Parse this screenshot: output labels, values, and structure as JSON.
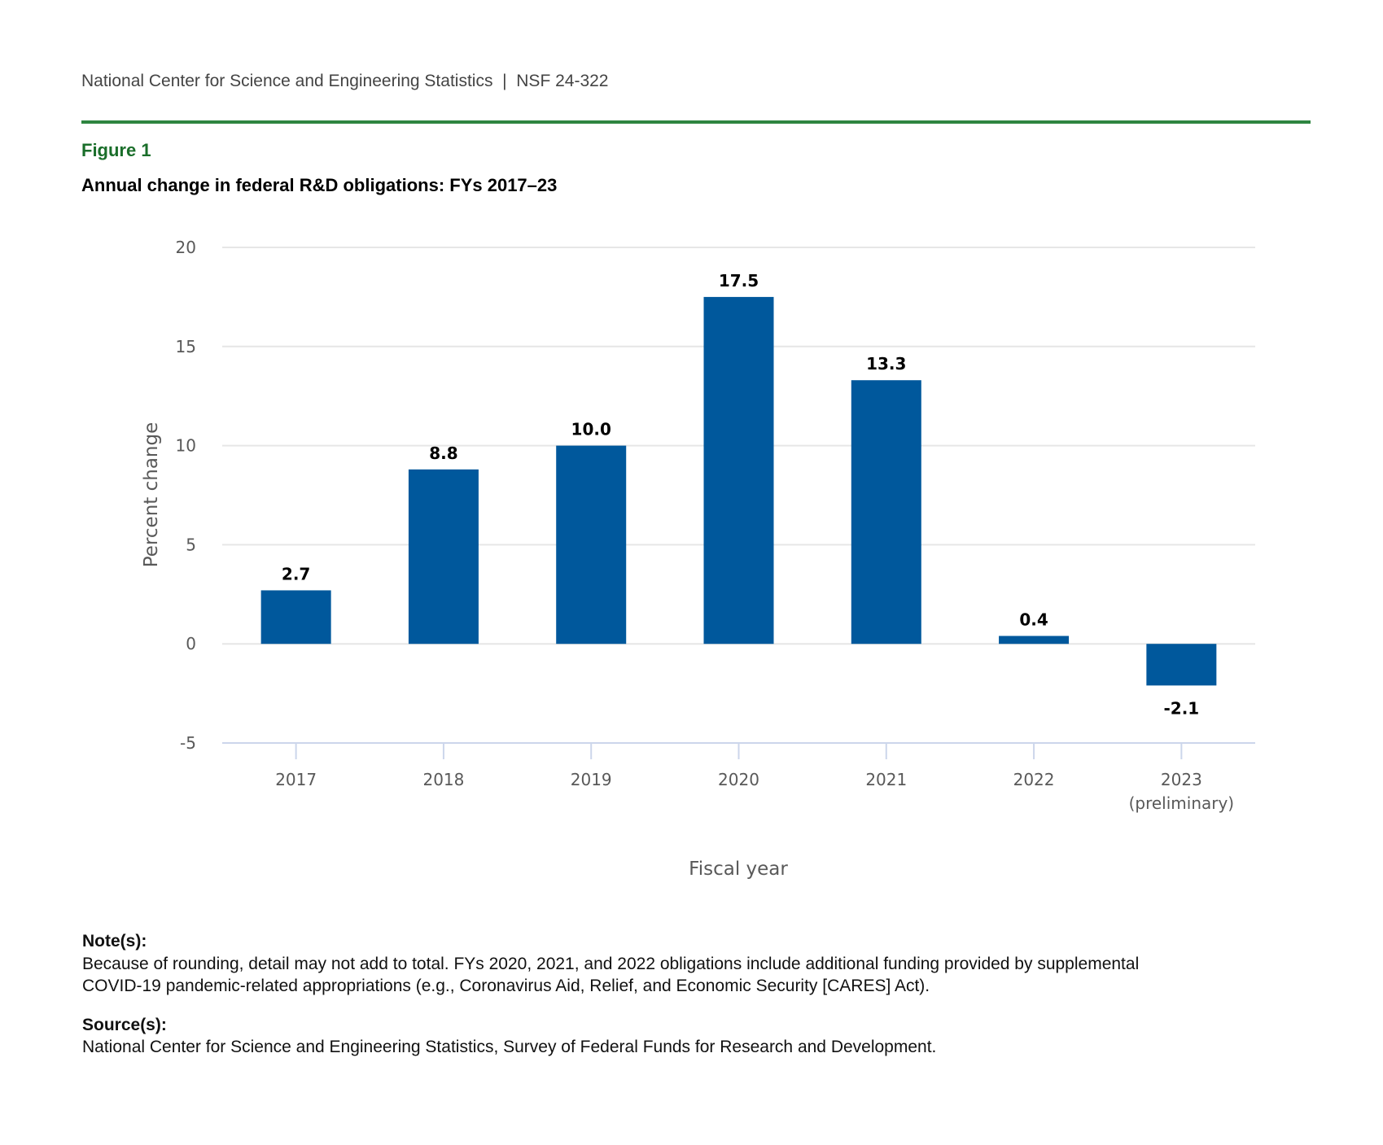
{
  "header": {
    "publisher": "National Center for Science and Engineering Statistics",
    "separator": "|",
    "report_id": "NSF 24-322"
  },
  "figure": {
    "label": "Figure 1",
    "title": "Annual change in federal R&D obligations: FYs 2017–23"
  },
  "colors": {
    "bar": "#00589c",
    "rule": "#2e8540",
    "figure_label": "#1a6e2a"
  },
  "chart_data": {
    "type": "bar",
    "title": "Annual change in federal R&D obligations: FYs 2017–23",
    "xlabel": "Fiscal year",
    "ylabel": "Percent change",
    "categories": [
      "2017",
      "2018",
      "2019",
      "2020",
      "2021",
      "2022",
      "2023"
    ],
    "category_sublabels": [
      "",
      "",
      "",
      "",
      "",
      "",
      "(preliminary)"
    ],
    "values": [
      2.7,
      8.8,
      10.0,
      17.5,
      13.3,
      0.4,
      -2.1
    ],
    "data_labels": [
      "2.7",
      "8.8",
      "10.0",
      "17.5",
      "13.3",
      "0.4",
      "-2.1"
    ],
    "ylim": [
      -5,
      20
    ],
    "yticks": [
      -5,
      0,
      5,
      10,
      15,
      20
    ],
    "ytick_labels": [
      "-5",
      "0",
      "5",
      "10",
      "15",
      "20"
    ],
    "grid": true,
    "legend": "none"
  },
  "notes": {
    "notes_heading": "Note(s):",
    "notes_line1": "Because of rounding, detail may not add to total. FYs 2020, 2021, and 2022 obligations include additional funding provided by supplemental",
    "notes_line2": "COVID-19 pandemic-related appropriations (e.g., Coronavirus Aid, Relief, and Economic Security [CARES] Act).",
    "source_heading": "Source(s):",
    "source_text": "National Center for Science and Engineering Statistics, Survey of Federal Funds for Research and Development."
  }
}
